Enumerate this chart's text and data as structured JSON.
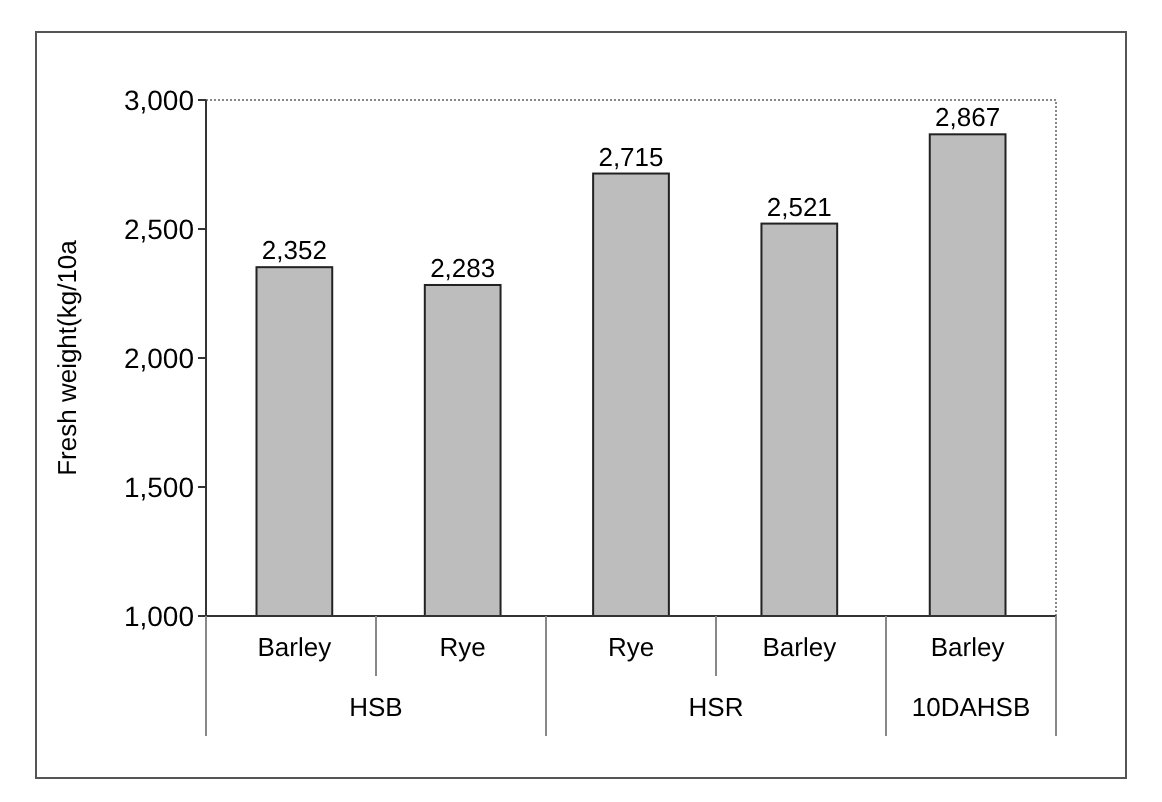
{
  "chart_data": {
    "type": "bar",
    "ylabel": "Fresh weight(kg/10a",
    "categories": [
      "Barley",
      "Rye",
      "Rye",
      "Barley",
      "Barley"
    ],
    "values": [
      2352,
      2283,
      2715,
      2521,
      2867
    ],
    "value_labels": [
      "2,352",
      "2,283",
      "2,715",
      "2,521",
      "2,867"
    ],
    "color": "#bdbdbd",
    "ylim": [
      1000,
      3000
    ],
    "yticks": [
      {
        "value": 1000,
        "label": "1,000"
      },
      {
        "value": 1500,
        "label": "1,500"
      },
      {
        "value": 2000,
        "label": "2,000"
      },
      {
        "value": 2500,
        "label": "2,500"
      },
      {
        "value": 3000,
        "label": "3,000"
      }
    ],
    "annotations": [
      "HSB",
      "HSR",
      "10DAHSB"
    ],
    "grid": false
  }
}
